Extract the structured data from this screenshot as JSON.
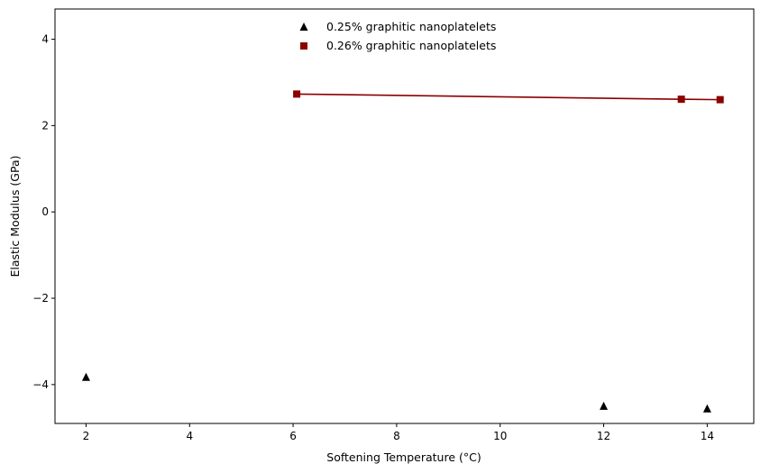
{
  "chart_data": {
    "type": "scatter",
    "title": "",
    "xlabel": "Softening Temperature (°C)",
    "ylabel": "Elastic Modulus (GPa)",
    "xlim": [
      1.4,
      14.9
    ],
    "ylim": [
      -4.9,
      4.7
    ],
    "xticks": [
      2,
      4,
      6,
      8,
      10,
      12,
      14
    ],
    "yticks": [
      -4,
      -2,
      0,
      2,
      4
    ],
    "grid": false,
    "legend_position": "top-center",
    "series": [
      {
        "name": "0.25% graphitic nanoplatelets",
        "marker": "triangle",
        "color": "#000000",
        "line": false,
        "points": [
          {
            "x": 2.0,
            "y": -3.83
          },
          {
            "x": 12.0,
            "y": -4.5
          },
          {
            "x": 14.0,
            "y": -4.56
          }
        ]
      },
      {
        "name": "0.26% graphitic nanoplatelets",
        "marker": "square",
        "color": "#8b0000",
        "line": true,
        "points": [
          {
            "x": 6.07,
            "y": 2.73
          },
          {
            "x": 13.5,
            "y": 2.61
          },
          {
            "x": 14.25,
            "y": 2.6
          }
        ]
      }
    ]
  }
}
